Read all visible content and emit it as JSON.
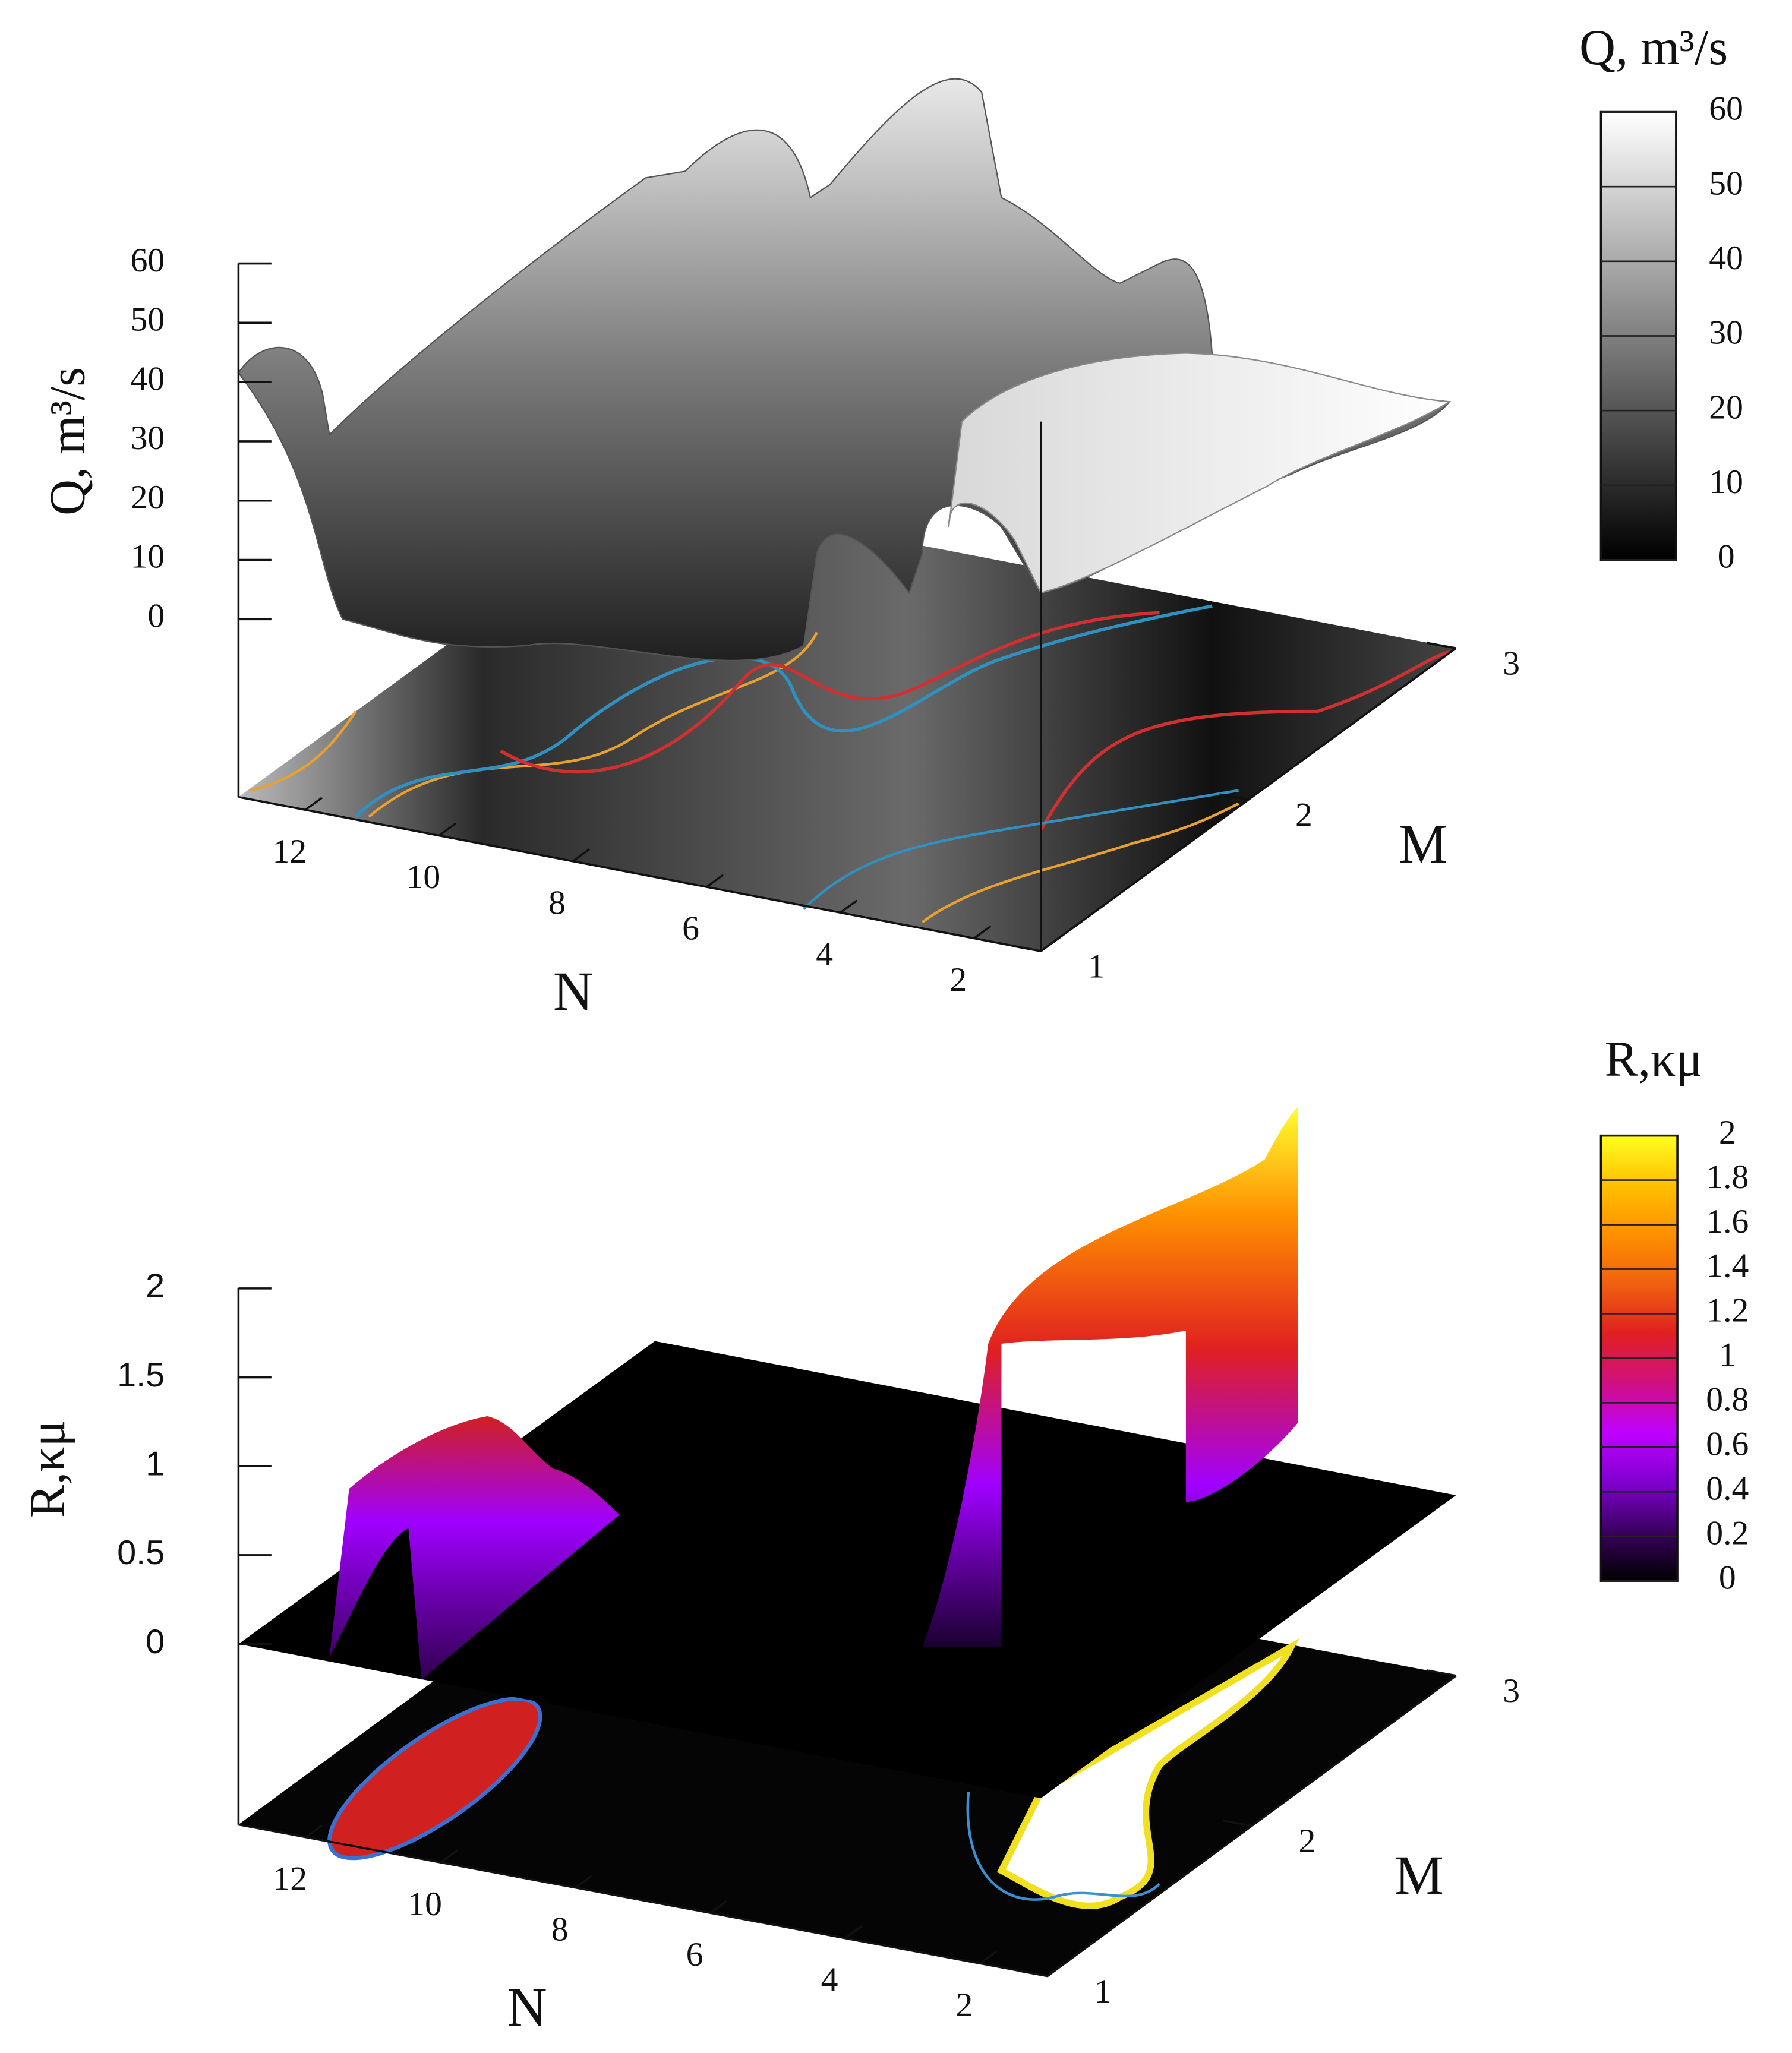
{
  "chart_data": [
    {
      "type": "surface3d",
      "zlabel": "Q, m³/s",
      "xlabel": "N",
      "ylabel": "M",
      "xlim": [
        1,
        13
      ],
      "xticks": [
        2,
        4,
        6,
        8,
        10,
        12
      ],
      "ylim": [
        1,
        3
      ],
      "yticks": [
        1,
        2,
        3
      ],
      "zlim": [
        0,
        60
      ],
      "zticks": [
        0,
        10,
        20,
        30,
        40,
        50,
        60
      ],
      "colorbar_label": "Q, m³/s",
      "colorbar_ticks": [
        0,
        10,
        20,
        30,
        40,
        50,
        60
      ],
      "colormap": [
        "#000000",
        "#ffffff"
      ]
    },
    {
      "type": "surface3d",
      "zlabel": "R,κμ",
      "xlabel": "N",
      "ylabel": "M",
      "xlim": [
        1,
        13
      ],
      "xticks": [
        2,
        4,
        6,
        8,
        10,
        12
      ],
      "ylim": [
        1,
        3
      ],
      "yticks": [
        1,
        2,
        3
      ],
      "zlim": [
        0,
        2
      ],
      "zticks": [
        0,
        0.5,
        1,
        1.5,
        2
      ],
      "colorbar_label": "R,κμ",
      "colorbar_ticks": [
        0,
        0.2,
        0.4,
        0.6,
        0.8,
        1,
        1.2,
        1.4,
        1.6,
        1.8,
        2
      ],
      "colormap": [
        "#000000",
        "#3a0060",
        "#8000d0",
        "#c000ff",
        "#d01080",
        "#e02020",
        "#f06010",
        "#ff9000",
        "#ffc000",
        "#ffff20"
      ]
    }
  ]
}
